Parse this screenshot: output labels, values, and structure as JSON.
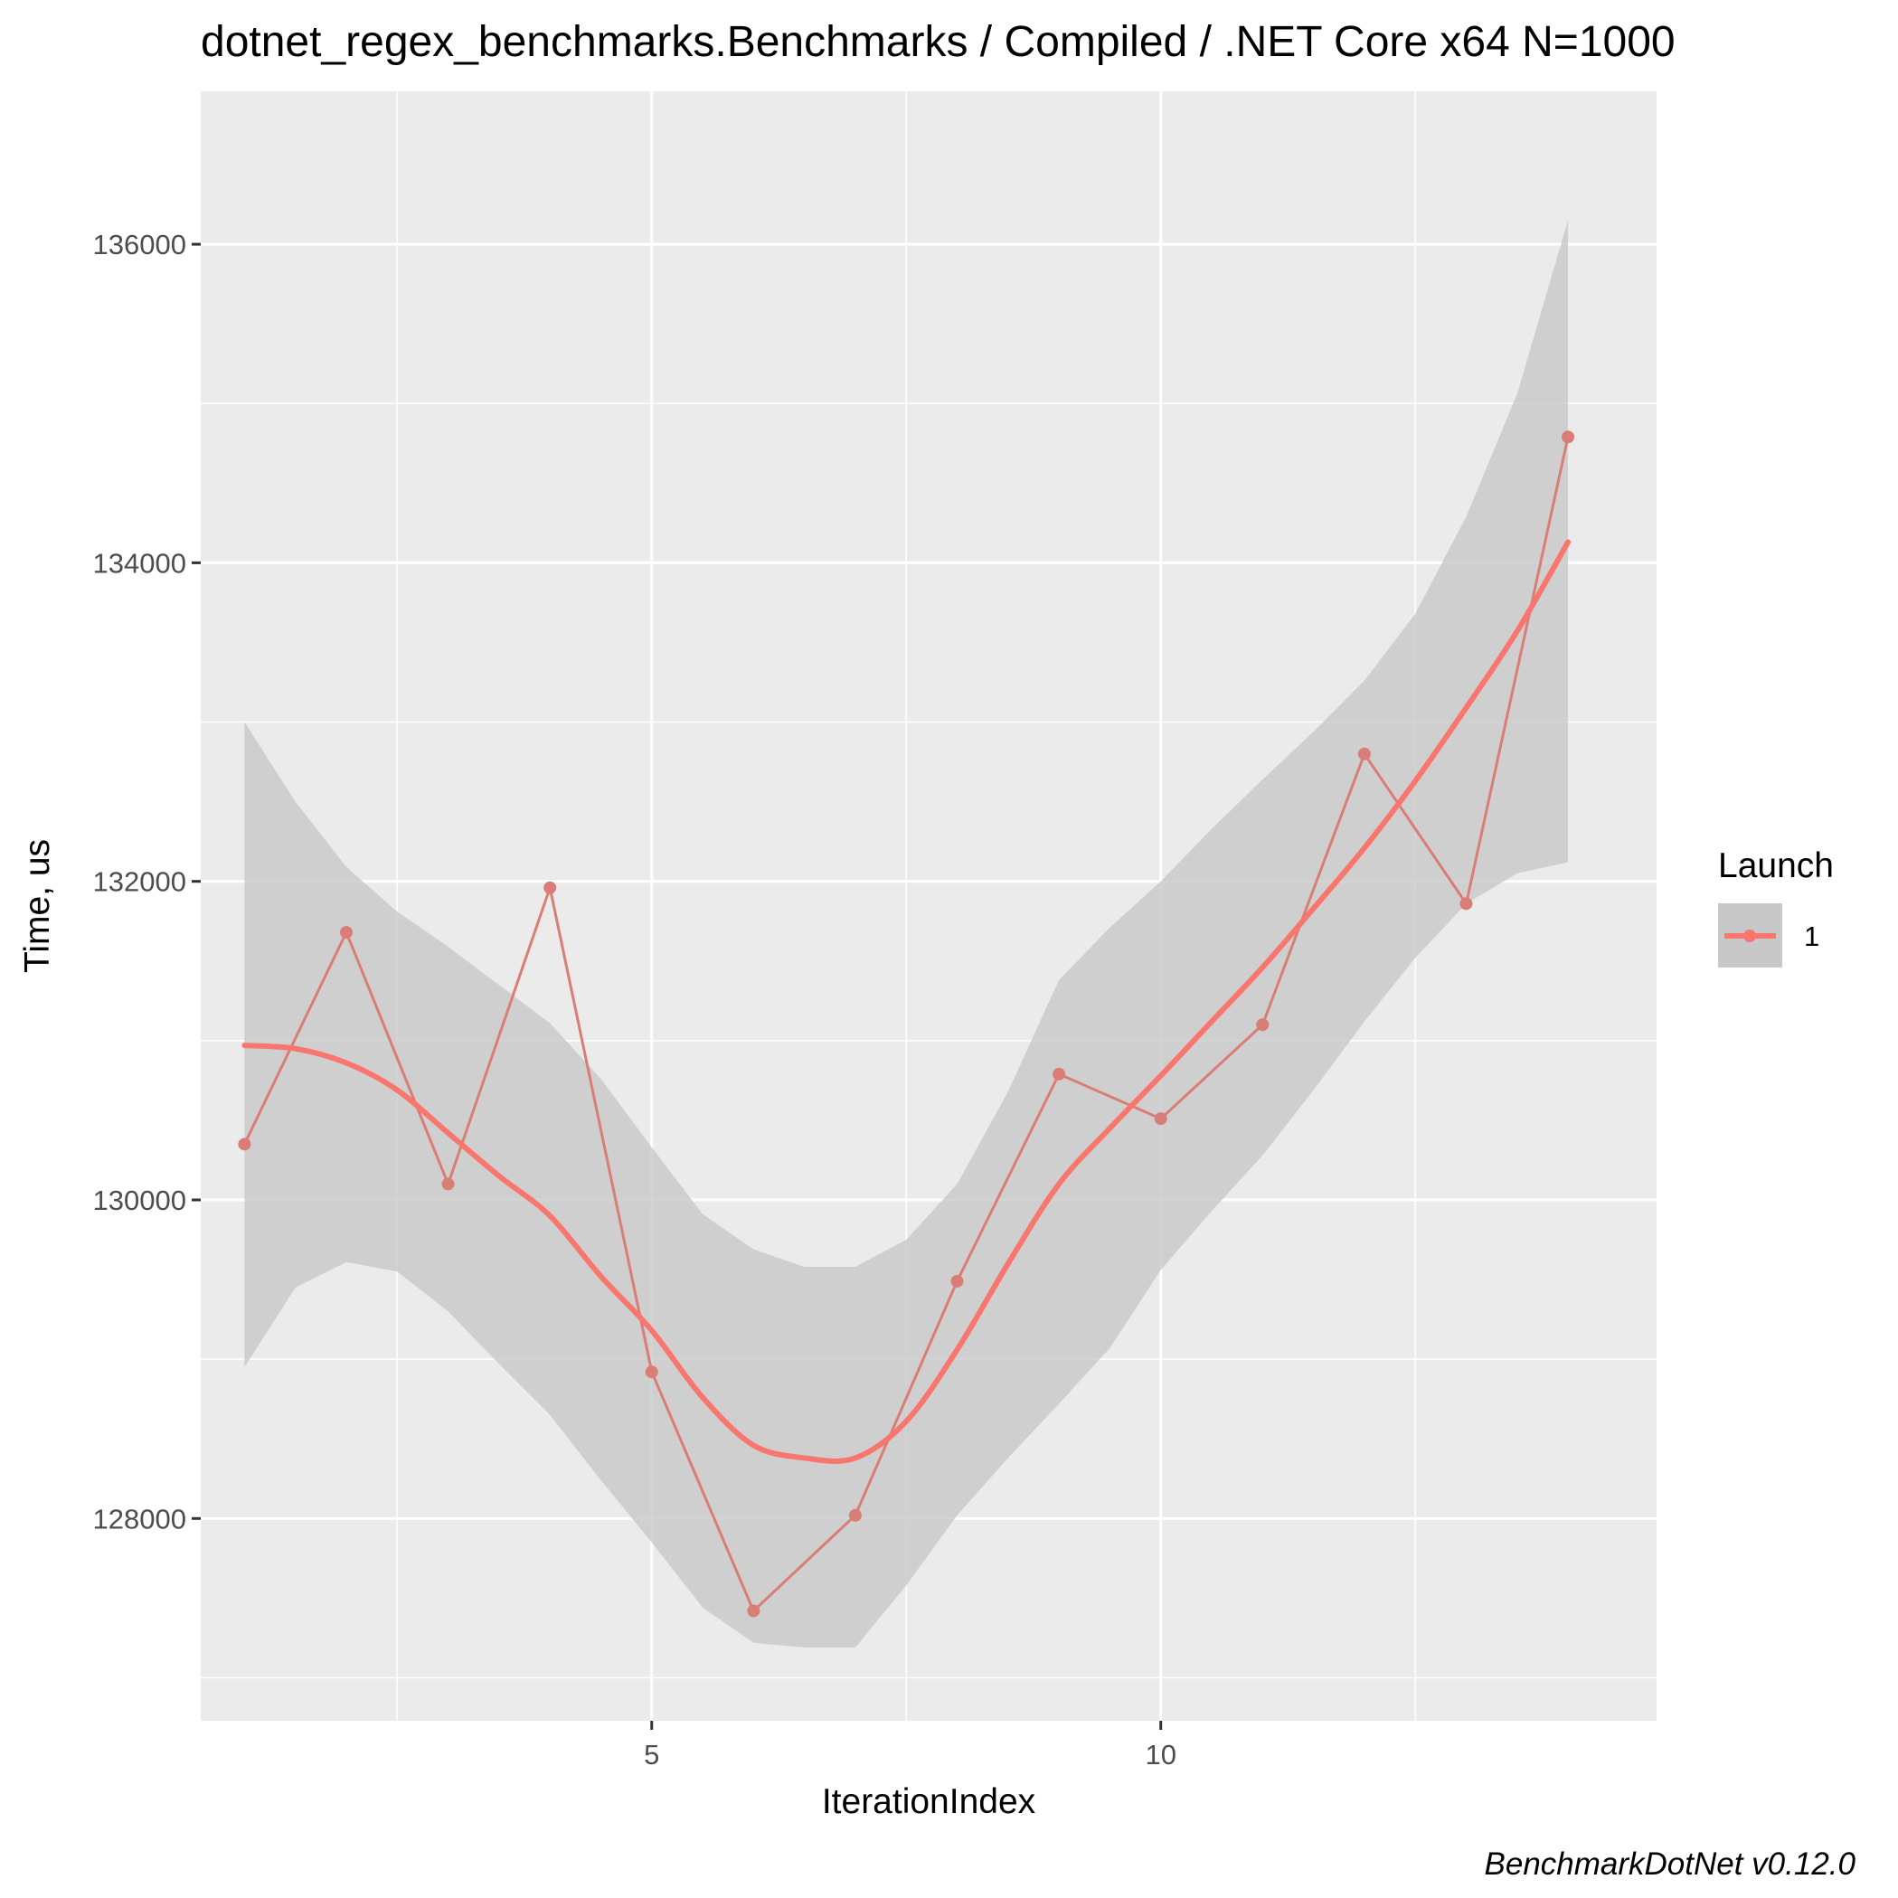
{
  "chart_data": {
    "type": "line",
    "title": "dotnet_regex_benchmarks.Benchmarks / Compiled / .NET Core x64 N=1000",
    "xlabel": "IterationIndex",
    "ylabel": "Time, us",
    "caption": "BenchmarkDotNet v0.12.0",
    "xlim": [
      0.57,
      14.87
    ],
    "ylim": [
      126730,
      136960
    ],
    "x_ticks": [
      5,
      10
    ],
    "y_ticks": [
      128000,
      130000,
      132000,
      134000,
      136000
    ],
    "x_tick_labels": [
      "5",
      "10"
    ],
    "y_tick_labels": [
      "128000",
      "130000",
      "132000",
      "134000",
      "136000"
    ],
    "grid": true,
    "legend": {
      "title": "Launch",
      "position": "right",
      "entries": [
        {
          "label": "1",
          "color": "#F8766D"
        }
      ]
    },
    "colors": {
      "series": "#F8766D",
      "panel": "#EBEBEB",
      "band": "#C8C8C8",
      "grid": "#FFFFFF"
    },
    "series": [
      {
        "name": "1",
        "x": [
          1,
          2,
          3,
          4,
          5,
          6,
          7,
          8,
          9,
          10,
          11,
          12,
          13,
          14
        ],
        "values": [
          130350,
          131680,
          130100,
          131960,
          128920,
          127420,
          128020,
          129490,
          130790,
          130510,
          131100,
          132800,
          131860,
          134790
        ]
      }
    ],
    "smooth": {
      "method": "loess",
      "x": [
        1,
        1.5,
        2,
        2.5,
        3,
        3.5,
        4,
        4.5,
        5,
        5.5,
        6,
        6.5,
        7,
        7.5,
        8,
        8.5,
        9,
        9.5,
        10,
        10.5,
        11,
        11.5,
        12,
        12.5,
        13,
        13.5,
        14
      ],
      "fit": [
        130970,
        130950,
        130860,
        130690,
        130420,
        130150,
        129900,
        129520,
        129180,
        128760,
        128460,
        128380,
        128380,
        128610,
        129060,
        129600,
        130100,
        130450,
        130780,
        131120,
        131460,
        131830,
        132210,
        132630,
        133090,
        133570,
        134130
      ],
      "lower": [
        128950,
        129450,
        129610,
        129550,
        129300,
        128970,
        128650,
        128240,
        127850,
        127440,
        127220,
        127190,
        127190,
        127580,
        128020,
        128380,
        128720,
        129070,
        129560,
        129930,
        130280,
        130690,
        131120,
        131520,
        131860,
        132050,
        132120
      ],
      "upper": [
        133000,
        132500,
        132090,
        131810,
        131590,
        131350,
        131110,
        130760,
        130330,
        129910,
        129690,
        129580,
        129580,
        129750,
        130100,
        130680,
        131380,
        131710,
        132000,
        132330,
        132640,
        132940,
        133260,
        133680,
        134290,
        135060,
        136150
      ]
    }
  }
}
